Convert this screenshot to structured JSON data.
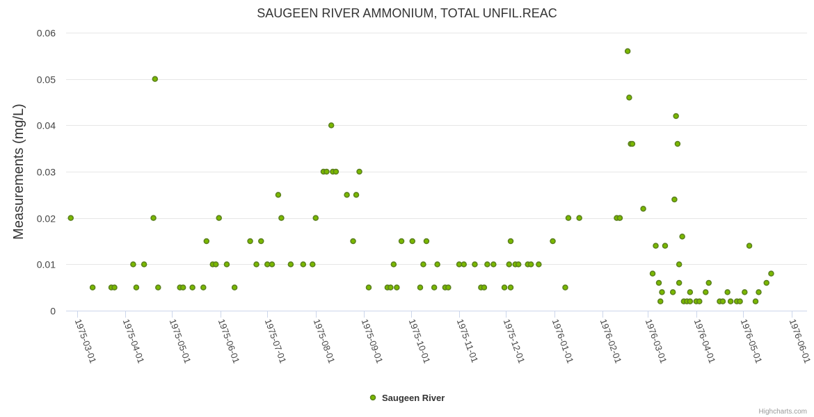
{
  "chart_data": {
    "type": "scatter",
    "title": "SAUGEEN RIVER AMMONIUM, TOTAL UNFIL.REAC",
    "ylabel": "Measurements (mg/L)",
    "xlabel": "",
    "ylim": [
      0,
      0.06
    ],
    "yticks": [
      "0",
      "0.01",
      "0.02",
      "0.03",
      "0.04",
      "0.05",
      "0.06"
    ],
    "xlim": [
      "1975-02-22",
      "1976-06-11"
    ],
    "xticks": [
      "1975-03-01",
      "1975-04-01",
      "1975-05-01",
      "1975-06-01",
      "1975-07-01",
      "1975-08-01",
      "1975-09-01",
      "1975-10-01",
      "1975-11-01",
      "1975-12-01",
      "1976-01-01",
      "1976-02-01",
      "1976-03-01",
      "1976-04-01",
      "1976-05-01",
      "1976-06-01"
    ],
    "grid": true,
    "legend": "bottom-center",
    "credits": "Highcharts.com",
    "colors": {
      "marker_fill": "#7ab800",
      "marker_stroke": "#5a7f1e"
    },
    "series": [
      {
        "name": "Saugeen River",
        "points": [
          {
            "x": "1975-02-25",
            "y": 0.02
          },
          {
            "x": "1975-03-11",
            "y": 0.005
          },
          {
            "x": "1975-03-23",
            "y": 0.005
          },
          {
            "x": "1975-03-25",
            "y": 0.005
          },
          {
            "x": "1975-04-06",
            "y": 0.01
          },
          {
            "x": "1975-04-08",
            "y": 0.005
          },
          {
            "x": "1975-04-13",
            "y": 0.01
          },
          {
            "x": "1975-04-19",
            "y": 0.02
          },
          {
            "x": "1975-04-20",
            "y": 0.05
          },
          {
            "x": "1975-04-22",
            "y": 0.005
          },
          {
            "x": "1975-05-06",
            "y": 0.005
          },
          {
            "x": "1975-05-08",
            "y": 0.005
          },
          {
            "x": "1975-05-14",
            "y": 0.005
          },
          {
            "x": "1975-05-21",
            "y": 0.005
          },
          {
            "x": "1975-05-23",
            "y": 0.015
          },
          {
            "x": "1975-05-27",
            "y": 0.01
          },
          {
            "x": "1975-05-29",
            "y": 0.01
          },
          {
            "x": "1975-05-31",
            "y": 0.02
          },
          {
            "x": "1975-06-05",
            "y": 0.01
          },
          {
            "x": "1975-06-10",
            "y": 0.005
          },
          {
            "x": "1975-06-20",
            "y": 0.015
          },
          {
            "x": "1975-06-24",
            "y": 0.01
          },
          {
            "x": "1975-06-27",
            "y": 0.015
          },
          {
            "x": "1975-07-01",
            "y": 0.01
          },
          {
            "x": "1975-07-04",
            "y": 0.01
          },
          {
            "x": "1975-07-08",
            "y": 0.025
          },
          {
            "x": "1975-07-10",
            "y": 0.02
          },
          {
            "x": "1975-07-16",
            "y": 0.01
          },
          {
            "x": "1975-07-24",
            "y": 0.01
          },
          {
            "x": "1975-07-30",
            "y": 0.01
          },
          {
            "x": "1975-08-01",
            "y": 0.02
          },
          {
            "x": "1975-08-06",
            "y": 0.03
          },
          {
            "x": "1975-08-08",
            "y": 0.03
          },
          {
            "x": "1975-08-11",
            "y": 0.04
          },
          {
            "x": "1975-08-12",
            "y": 0.03
          },
          {
            "x": "1975-08-14",
            "y": 0.03
          },
          {
            "x": "1975-08-21",
            "y": 0.025
          },
          {
            "x": "1975-08-25",
            "y": 0.015
          },
          {
            "x": "1975-08-27",
            "y": 0.025
          },
          {
            "x": "1975-08-29",
            "y": 0.03
          },
          {
            "x": "1975-09-04",
            "y": 0.005
          },
          {
            "x": "1975-09-16",
            "y": 0.005
          },
          {
            "x": "1975-09-18",
            "y": 0.005
          },
          {
            "x": "1975-09-20",
            "y": 0.01
          },
          {
            "x": "1975-09-22",
            "y": 0.005
          },
          {
            "x": "1975-09-25",
            "y": 0.015
          },
          {
            "x": "1975-10-02",
            "y": 0.015
          },
          {
            "x": "1975-10-07",
            "y": 0.005
          },
          {
            "x": "1975-10-09",
            "y": 0.01
          },
          {
            "x": "1975-10-11",
            "y": 0.015
          },
          {
            "x": "1975-10-16",
            "y": 0.005
          },
          {
            "x": "1975-10-18",
            "y": 0.01
          },
          {
            "x": "1975-10-23",
            "y": 0.005
          },
          {
            "x": "1975-10-25",
            "y": 0.005
          },
          {
            "x": "1975-11-01",
            "y": 0.01
          },
          {
            "x": "1975-11-04",
            "y": 0.01
          },
          {
            "x": "1975-11-11",
            "y": 0.01
          },
          {
            "x": "1975-11-15",
            "y": 0.005
          },
          {
            "x": "1975-11-17",
            "y": 0.005
          },
          {
            "x": "1975-11-19",
            "y": 0.01
          },
          {
            "x": "1975-11-23",
            "y": 0.01
          },
          {
            "x": "1975-11-30",
            "y": 0.005
          },
          {
            "x": "1975-12-03",
            "y": 0.01
          },
          {
            "x": "1975-12-04",
            "y": 0.015
          },
          {
            "x": "1975-12-04",
            "y": 0.005
          },
          {
            "x": "1975-12-07",
            "y": 0.01
          },
          {
            "x": "1975-12-09",
            "y": 0.01
          },
          {
            "x": "1975-12-15",
            "y": 0.01
          },
          {
            "x": "1975-12-17",
            "y": 0.01
          },
          {
            "x": "1975-12-22",
            "y": 0.01
          },
          {
            "x": "1975-12-31",
            "y": 0.015
          },
          {
            "x": "1976-01-08",
            "y": 0.005
          },
          {
            "x": "1976-01-10",
            "y": 0.02
          },
          {
            "x": "1976-01-17",
            "y": 0.02
          },
          {
            "x": "1976-02-10",
            "y": 0.02
          },
          {
            "x": "1976-02-12",
            "y": 0.02
          },
          {
            "x": "1976-02-17",
            "y": 0.056
          },
          {
            "x": "1976-02-18",
            "y": 0.046
          },
          {
            "x": "1976-02-19",
            "y": 0.036
          },
          {
            "x": "1976-02-20",
            "y": 0.036
          },
          {
            "x": "1976-02-27",
            "y": 0.022
          },
          {
            "x": "1976-03-04",
            "y": 0.008
          },
          {
            "x": "1976-03-06",
            "y": 0.014
          },
          {
            "x": "1976-03-08",
            "y": 0.006
          },
          {
            "x": "1976-03-09",
            "y": 0.002
          },
          {
            "x": "1976-03-10",
            "y": 0.004
          },
          {
            "x": "1976-03-12",
            "y": 0.014
          },
          {
            "x": "1976-03-17",
            "y": 0.004
          },
          {
            "x": "1976-03-18",
            "y": 0.024
          },
          {
            "x": "1976-03-19",
            "y": 0.042
          },
          {
            "x": "1976-03-20",
            "y": 0.036
          },
          {
            "x": "1976-03-21",
            "y": 0.006
          },
          {
            "x": "1976-03-21",
            "y": 0.01
          },
          {
            "x": "1976-03-23",
            "y": 0.016
          },
          {
            "x": "1976-03-24",
            "y": 0.002
          },
          {
            "x": "1976-03-26",
            "y": 0.002
          },
          {
            "x": "1976-03-28",
            "y": 0.002
          },
          {
            "x": "1976-03-28",
            "y": 0.004
          },
          {
            "x": "1976-04-01",
            "y": 0.002
          },
          {
            "x": "1976-04-03",
            "y": 0.002
          },
          {
            "x": "1976-04-07",
            "y": 0.004
          },
          {
            "x": "1976-04-09",
            "y": 0.006
          },
          {
            "x": "1976-04-16",
            "y": 0.002
          },
          {
            "x": "1976-04-18",
            "y": 0.002
          },
          {
            "x": "1976-04-21",
            "y": 0.004
          },
          {
            "x": "1976-04-23",
            "y": 0.002
          },
          {
            "x": "1976-04-27",
            "y": 0.002
          },
          {
            "x": "1976-04-29",
            "y": 0.002
          },
          {
            "x": "1976-05-02",
            "y": 0.004
          },
          {
            "x": "1976-05-05",
            "y": 0.014
          },
          {
            "x": "1976-05-09",
            "y": 0.002
          },
          {
            "x": "1976-05-11",
            "y": 0.004
          },
          {
            "x": "1976-05-16",
            "y": 0.006
          },
          {
            "x": "1976-05-19",
            "y": 0.008
          }
        ]
      }
    ]
  }
}
